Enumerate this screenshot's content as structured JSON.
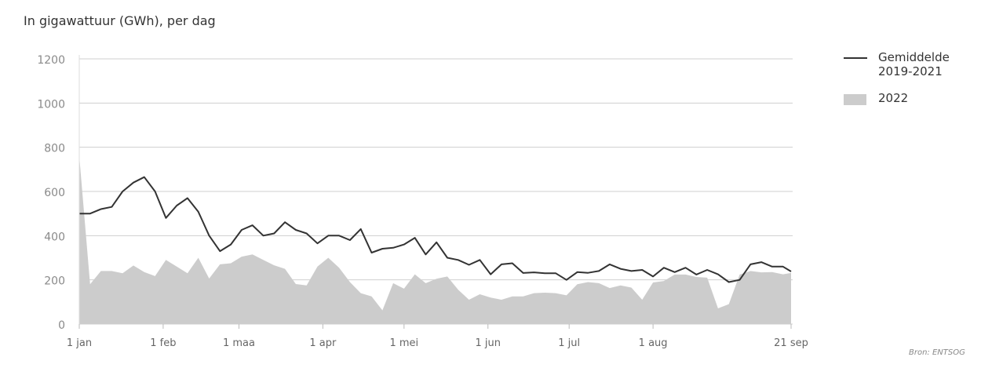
{
  "title": "In gigawattuur (GWh), per dag",
  "source": "Bron: ENTSOG",
  "colors": {
    "average_line": "#333333",
    "area_2022": "#cccccc",
    "grid": "#cfcfcf"
  },
  "chart_data": {
    "type": "line+area",
    "ylabel": "In gigawattuur (GWh), per dag",
    "ylim": [
      0,
      1200
    ],
    "yticks": [
      0,
      200,
      400,
      600,
      800,
      1000,
      1200
    ],
    "xlim": [
      "01-01",
      "09-21"
    ],
    "xticks": [
      {
        "date": "01-01",
        "label": "1 jan"
      },
      {
        "date": "02-01",
        "label": "1 feb"
      },
      {
        "date": "03-01",
        "label": "1 maa"
      },
      {
        "date": "04-01",
        "label": "1 apr"
      },
      {
        "date": "05-01",
        "label": "1 mei"
      },
      {
        "date": "06-01",
        "label": "1 jun"
      },
      {
        "date": "07-01",
        "label": "1 jul"
      },
      {
        "date": "08-01",
        "label": "1 aug"
      },
      {
        "date": "09-21",
        "label": "21 sep"
      }
    ],
    "grid": "horizontal",
    "legend_position": "right",
    "x": [
      "01-01",
      "01-05",
      "01-09",
      "01-13",
      "01-17",
      "01-21",
      "01-25",
      "01-29",
      "02-02",
      "02-06",
      "02-10",
      "02-14",
      "02-18",
      "02-22",
      "02-26",
      "03-02",
      "03-06",
      "03-10",
      "03-14",
      "03-18",
      "03-22",
      "03-26",
      "03-30",
      "04-03",
      "04-07",
      "04-11",
      "04-15",
      "04-19",
      "04-23",
      "04-27",
      "05-01",
      "05-05",
      "05-09",
      "05-13",
      "05-17",
      "05-21",
      "05-25",
      "05-29",
      "06-02",
      "06-06",
      "06-10",
      "06-14",
      "06-18",
      "06-22",
      "06-26",
      "06-30",
      "07-04",
      "07-08",
      "07-12",
      "07-16",
      "07-20",
      "07-24",
      "07-28",
      "08-01",
      "08-05",
      "08-09",
      "08-13",
      "08-17",
      "08-21",
      "08-25",
      "08-29",
      "09-02",
      "09-06",
      "09-10",
      "09-14",
      "09-18",
      "09-21"
    ],
    "series": [
      {
        "name": "2022",
        "type": "area",
        "values": [
          760,
          180,
          240,
          240,
          230,
          265,
          235,
          217,
          290,
          260,
          230,
          300,
          206,
          270,
          275,
          305,
          315,
          290,
          266,
          250,
          181,
          175,
          260,
          300,
          255,
          190,
          140,
          125,
          62,
          185,
          160,
          225,
          185,
          205,
          215,
          155,
          110,
          135,
          120,
          110,
          125,
          125,
          140,
          142,
          140,
          130,
          180,
          190,
          185,
          163,
          175,
          165,
          110,
          188,
          195,
          224,
          224,
          213,
          210,
          71,
          90,
          224,
          240,
          234,
          235,
          225,
          231
        ]
      },
      {
        "name": "Gemiddelde 2019-2021",
        "type": "line",
        "values": [
          500,
          500,
          520,
          530,
          600,
          640,
          665,
          600,
          480,
          536,
          570,
          508,
          400,
          330,
          360,
          426,
          447,
          400,
          410,
          461,
          426,
          410,
          365,
          400,
          400,
          380,
          430,
          323,
          341,
          345,
          360,
          390,
          315,
          370,
          300,
          290,
          268,
          290,
          225,
          270,
          275,
          231,
          234,
          230,
          230,
          200,
          235,
          232,
          240,
          270,
          250,
          240,
          245,
          215,
          255,
          235,
          255,
          224,
          245,
          225,
          190,
          200,
          270,
          280,
          260,
          260,
          238
        ]
      }
    ]
  },
  "legend": {
    "average_label_line1": "Gemiddelde",
    "average_label_line2": "2019-2021",
    "current_label": "2022"
  }
}
